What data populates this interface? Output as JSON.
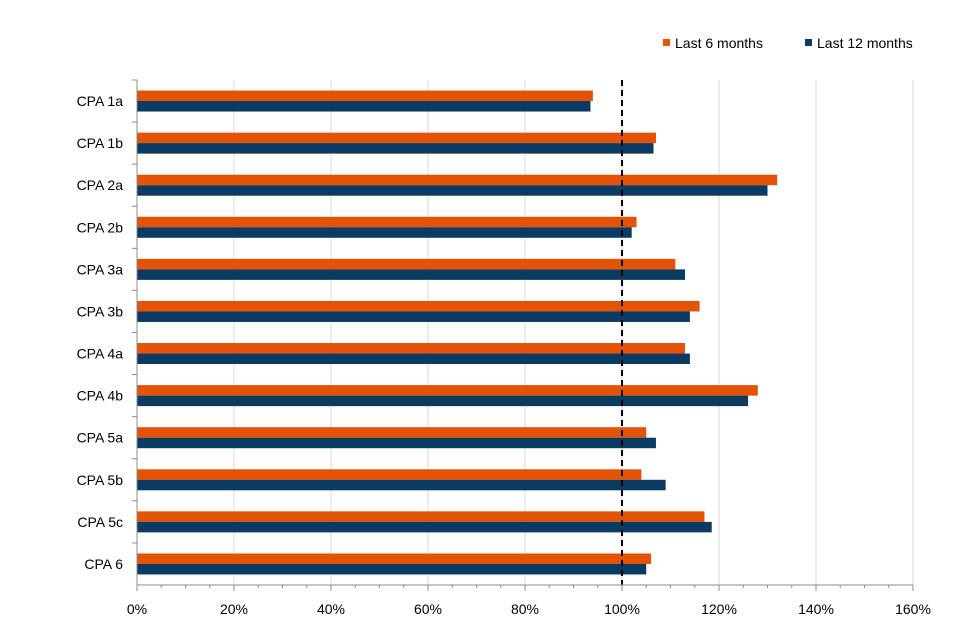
{
  "chart_data": {
    "type": "bar",
    "orientation": "horizontal",
    "categories": [
      "CPA 1a",
      "CPA 1b",
      "CPA 2a",
      "CPA 2b",
      "CPA 3a",
      "CPA 3b",
      "CPA 4a",
      "CPA 4b",
      "CPA 5a",
      "CPA 5b",
      "CPA 5c",
      "CPA 6"
    ],
    "series": [
      {
        "name": "Last 6 months",
        "color": "#E35205",
        "values": [
          94,
          107,
          132,
          103,
          111,
          116,
          113,
          128,
          105,
          104,
          117,
          106
        ]
      },
      {
        "name": "Last 12 months",
        "color": "#0B3A63",
        "values": [
          93.5,
          106.5,
          130,
          102,
          113,
          114,
          114,
          126,
          107,
          109,
          118.5,
          105
        ]
      }
    ],
    "xlim": [
      0,
      160
    ],
    "x_ticks": [
      "0%",
      "20%",
      "40%",
      "60%",
      "80%",
      "100%",
      "120%",
      "140%",
      "160%"
    ],
    "x_tick_values": [
      0,
      20,
      40,
      60,
      80,
      100,
      120,
      140,
      160
    ],
    "reference_line": 100,
    "grid": true,
    "legend_position": "top-right",
    "title": "",
    "xlabel": "",
    "ylabel": ""
  }
}
